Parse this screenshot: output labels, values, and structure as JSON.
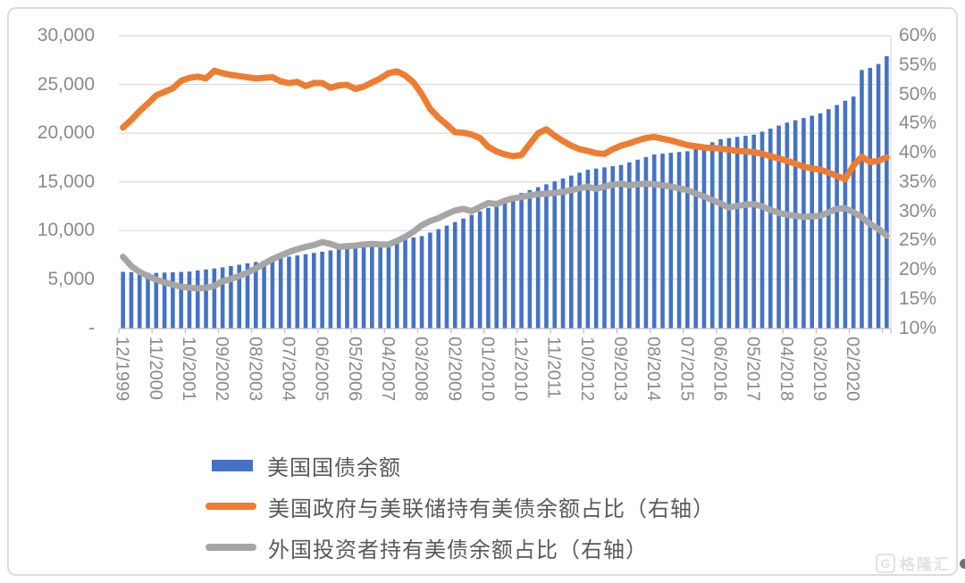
{
  "watermark": {
    "icon": "G",
    "brand": "格隆汇"
  },
  "chart_data": {
    "type": "bar",
    "subtype": "combo-bar-line-dual-axis",
    "title": "",
    "grid": "horizontal",
    "legend_position": "bottom",
    "left_axis": {
      "min": 0,
      "max": 30000,
      "ticks": [
        "30,000",
        "25,000",
        "20,000",
        "15,000",
        "10,000",
        "5,000",
        "-"
      ]
    },
    "right_axis": {
      "min": 10,
      "max": 60,
      "ticks": [
        "60%",
        "55%",
        "50%",
        "45%",
        "40%",
        "35%",
        "30%",
        "25%",
        "20%",
        "15%",
        "10%"
      ]
    },
    "x_tick_labels": [
      "12/1999",
      "11/2000",
      "10/2001",
      "09/2002",
      "08/2003",
      "07/2004",
      "06/2005",
      "05/2006",
      "04/2007",
      "03/2008",
      "02/2009",
      "01/2010",
      "12/2010",
      "11/2011",
      "10/2012",
      "09/2013",
      "08/2014",
      "07/2015",
      "06/2016",
      "05/2017",
      "04/2018",
      "03/2019",
      "02/2020"
    ],
    "categories_per_label": 4,
    "series": [
      {
        "name": "美国国债余额",
        "type": "bar",
        "axis": "left",
        "color": "#4472C4",
        "values": [
          5776,
          5747,
          5718,
          5689,
          5660,
          5695,
          5730,
          5765,
          5800,
          5908,
          6015,
          6123,
          6230,
          6368,
          6505,
          6643,
          6780,
          6918,
          7055,
          7193,
          7330,
          7458,
          7585,
          7713,
          7840,
          7968,
          8095,
          8223,
          8350,
          8480,
          8610,
          8740,
          8870,
          9013,
          9155,
          9298,
          9440,
          9800,
          10160,
          10520,
          10880,
          11248,
          11615,
          11983,
          12350,
          12730,
          13110,
          13490,
          13870,
          14165,
          14460,
          14755,
          15050,
          15350,
          15650,
          15950,
          16250,
          16373,
          16495,
          16618,
          16740,
          17010,
          17280,
          17550,
          17820,
          17903,
          17985,
          18068,
          18150,
          18458,
          18765,
          19073,
          19380,
          19498,
          19615,
          19733,
          19850,
          20160,
          20470,
          20780,
          21090,
          21325,
          21560,
          21795,
          22030,
          22463,
          22895,
          23328,
          23760,
          26480,
          26700,
          27100,
          27900
        ]
      },
      {
        "name": "美国政府与美联储持有美债余额占比（右轴）",
        "type": "line",
        "axis": "right",
        "color": "#ED7D31",
        "values": [
          44.3,
          45.6,
          47.1,
          48.4,
          49.8,
          50.4,
          51.0,
          52.3,
          52.8,
          53.0,
          52.7,
          54.0,
          53.6,
          53.3,
          53.1,
          52.9,
          52.7,
          52.8,
          52.9,
          52.2,
          51.9,
          52.1,
          51.4,
          51.9,
          51.9,
          51.1,
          51.5,
          51.6,
          50.9,
          51.3,
          52.0,
          52.7,
          53.6,
          53.9,
          53.2,
          52.0,
          50.0,
          47.5,
          46.0,
          44.8,
          43.5,
          43.4,
          43.1,
          42.5,
          41.0,
          40.2,
          39.7,
          39.4,
          39.6,
          41.5,
          43.3,
          44.0,
          42.9,
          42.0,
          41.2,
          40.6,
          40.3,
          39.9,
          39.8,
          40.6,
          41.2,
          41.6,
          42.1,
          42.5,
          42.7,
          42.4,
          42.1,
          41.7,
          41.3,
          41.1,
          40.9,
          40.8,
          40.7,
          40.5,
          40.3,
          40.2,
          40.1,
          39.8,
          39.4,
          39.0,
          38.6,
          38.1,
          37.6,
          37.3,
          37.1,
          36.6,
          36.0,
          35.5,
          37.8,
          39.3,
          38.4,
          38.6,
          39.2
        ]
      },
      {
        "name": "外国投资者持有美债余额占比（右轴）",
        "type": "line",
        "axis": "right",
        "color": "#A6A6A6",
        "values": [
          22.2,
          20.6,
          19.6,
          18.9,
          18.3,
          17.8,
          17.4,
          17.1,
          16.9,
          16.8,
          16.9,
          17.2,
          18.0,
          18.4,
          18.9,
          19.5,
          20.2,
          21.0,
          21.8,
          22.4,
          23.0,
          23.5,
          23.9,
          24.2,
          24.7,
          24.4,
          23.9,
          24.0,
          24.1,
          24.3,
          24.4,
          24.3,
          24.3,
          24.9,
          25.6,
          26.5,
          27.6,
          28.3,
          28.8,
          29.5,
          30.1,
          30.4,
          30.0,
          30.7,
          31.4,
          31.2,
          31.8,
          32.2,
          32.4,
          32.7,
          32.9,
          33.0,
          33.1,
          33.3,
          33.6,
          33.9,
          34.2,
          33.8,
          34.2,
          34.5,
          34.7,
          34.4,
          34.6,
          34.7,
          34.6,
          34.4,
          34.2,
          33.9,
          33.6,
          33.0,
          32.5,
          31.9,
          31.3,
          30.6,
          30.9,
          31.1,
          31.2,
          30.8,
          30.2,
          29.7,
          29.4,
          29.2,
          29.0,
          29.1,
          29.2,
          29.8,
          30.4,
          30.5,
          29.8,
          29.0,
          27.8,
          27.0,
          25.8
        ]
      }
    ],
    "style": {
      "gridline_color": "#d9d9d9",
      "axis_line_color": "#bfbfbf",
      "axis_text_color": "#8a8a8a",
      "legend_text_color": "#595959"
    }
  }
}
